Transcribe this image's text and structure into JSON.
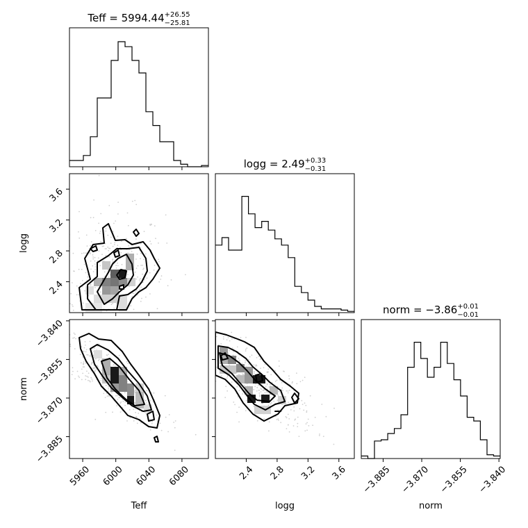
{
  "chart_data": {
    "type": "corner",
    "parameters": [
      "Teff",
      "logg",
      "norm"
    ],
    "titles": [
      {
        "name": "Teff",
        "median": "5994.44",
        "plus": "+26.55",
        "minus": "−25.81"
      },
      {
        "name": "logg",
        "median": "2.49",
        "plus": "+0.33",
        "minus": "−0.31"
      },
      {
        "name": "norm",
        "median": "−3.86",
        "plus": "+0.01",
        "minus": "−0.01"
      }
    ],
    "ranges": {
      "Teff": [
        5944,
        6112
      ],
      "logg": [
        2.0,
        3.8
      ],
      "norm": [
        -3.8935,
        -3.8395
      ]
    },
    "ticks": {
      "Teff": {
        "values": [
          5960,
          6000,
          6040,
          6080
        ],
        "labels": [
          "5960",
          "6000",
          "6040",
          "6080"
        ]
      },
      "logg": {
        "values": [
          2.4,
          2.8,
          3.2,
          3.6
        ],
        "labels": [
          "2.4",
          "2.8",
          "3.2",
          "3.6"
        ]
      },
      "norm": {
        "values": [
          -3.885,
          -3.87,
          -3.855,
          -3.84
        ],
        "labels": [
          "−3.885",
          "−3.870",
          "−3.855",
          "−3.840"
        ]
      }
    },
    "histograms": {
      "Teff": [
        0.05,
        0.05,
        0.09,
        0.24,
        0.55,
        0.55,
        0.85,
        1.0,
        0.96,
        0.85,
        0.75,
        0.44,
        0.33,
        0.2,
        0.2,
        0.05,
        0.02,
        0.0,
        0.0,
        0.01
      ],
      "logg": [
        0.54,
        0.6,
        0.5,
        0.5,
        0.93,
        0.79,
        0.68,
        0.73,
        0.66,
        0.59,
        0.54,
        0.44,
        0.21,
        0.16,
        0.1,
        0.05,
        0.03,
        0.03,
        0.03,
        0.02,
        0.01
      ],
      "norm": [
        0.02,
        0.0,
        0.14,
        0.15,
        0.2,
        0.24,
        0.35,
        0.73,
        0.93,
        0.8,
        0.65,
        0.73,
        0.93,
        0.76,
        0.63,
        0.5,
        0.33,
        0.3,
        0.15,
        0.03,
        0.02
      ]
    },
    "grid": false
  }
}
